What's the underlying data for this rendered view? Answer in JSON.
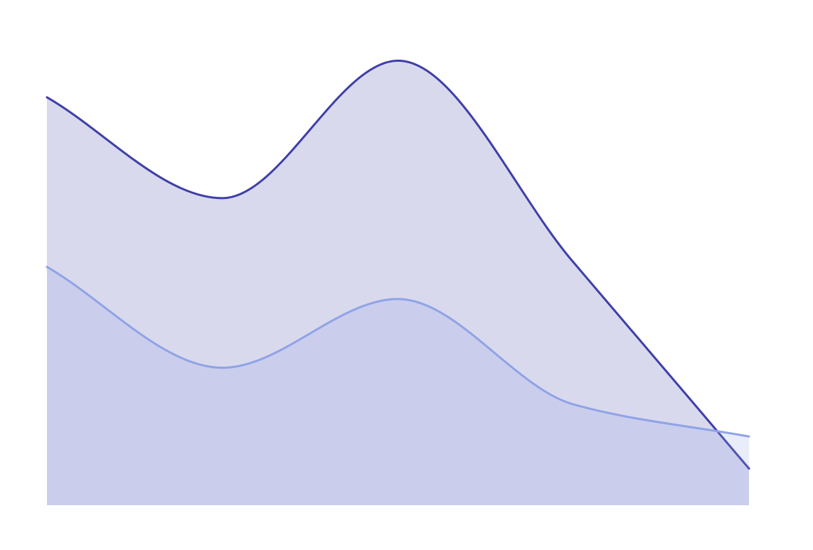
{
  "chart_data": {
    "type": "area",
    "stacked": false,
    "smooth": true,
    "x": [
      0,
      1,
      2,
      3,
      4
    ],
    "ylim": [
      0,
      100
    ],
    "xlim": [
      0,
      4
    ],
    "grid": false,
    "legend": "none",
    "series": [
      {
        "values": [
          89,
          67,
          97,
          53,
          8
        ],
        "color": "#3f3fa8",
        "fill_opacity": 0.2
      },
      {
        "values": [
          52,
          30,
          45,
          22,
          15
        ],
        "color": "#8fa3e6",
        "fill_opacity": 0.2
      }
    ]
  }
}
